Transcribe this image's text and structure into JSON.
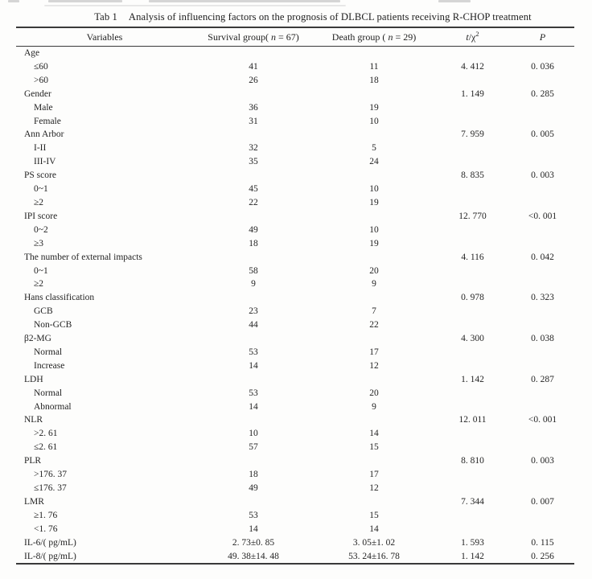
{
  "top_note": "",
  "table": {
    "caption": {
      "tab_label": "Tab 1",
      "text": "Analysis of influencing factors on the prognosis of DLBCL patients receiving R-CHOP treatment"
    },
    "header": {
      "variables": "Variables",
      "survival_pre": "Survival group(",
      "survival_n": "n",
      "survival_post": " = 67)",
      "death_pre": "Death group ( ",
      "death_n": "n",
      "death_post": " = 29)",
      "stat_t": "t",
      "stat_rest": "/χ",
      "stat_sup": "2",
      "p": "P"
    },
    "rows": [
      {
        "label": "Age",
        "indent": 0,
        "survival": "",
        "death": "",
        "stat": "",
        "p": ""
      },
      {
        "label": "≤60",
        "indent": 1,
        "survival": "41",
        "death": "11",
        "stat": "4. 412",
        "p": "0. 036"
      },
      {
        "label": ">60",
        "indent": 1,
        "survival": "26",
        "death": "18",
        "stat": "",
        "p": ""
      },
      {
        "label": "Gender",
        "indent": 0,
        "survival": "",
        "death": "",
        "stat": "1. 149",
        "p": "0. 285"
      },
      {
        "label": "Male",
        "indent": 1,
        "survival": "36",
        "death": "19",
        "stat": "",
        "p": ""
      },
      {
        "label": "Female",
        "indent": 1,
        "survival": "31",
        "death": "10",
        "stat": "",
        "p": ""
      },
      {
        "label": "Ann Arbor",
        "indent": 0,
        "survival": "",
        "death": "",
        "stat": "7. 959",
        "p": "0. 005"
      },
      {
        "label": "I-II",
        "indent": 1,
        "survival": "32",
        "death": "5",
        "stat": "",
        "p": ""
      },
      {
        "label": "III-IV",
        "indent": 1,
        "survival": "35",
        "death": "24",
        "stat": "",
        "p": ""
      },
      {
        "label": "PS score",
        "indent": 0,
        "survival": "",
        "death": "",
        "stat": "8. 835",
        "p": "0. 003"
      },
      {
        "label": "0~1",
        "indent": 1,
        "survival": "45",
        "death": "10",
        "stat": "",
        "p": ""
      },
      {
        "label": "≥2",
        "indent": 1,
        "survival": "22",
        "death": "19",
        "stat": "",
        "p": ""
      },
      {
        "label": "IPI score",
        "indent": 0,
        "survival": "",
        "death": "",
        "stat": "12. 770",
        "p": "<0. 001"
      },
      {
        "label": "0~2",
        "indent": 1,
        "survival": "49",
        "death": "10",
        "stat": "",
        "p": ""
      },
      {
        "label": "≥3",
        "indent": 1,
        "survival": "18",
        "death": "19",
        "stat": "",
        "p": ""
      },
      {
        "label": "The number of external impacts",
        "indent": 0,
        "survival": "",
        "death": "",
        "stat": "4. 116",
        "p": "0. 042"
      },
      {
        "label": "0~1",
        "indent": 1,
        "survival": "58",
        "death": "20",
        "stat": "",
        "p": ""
      },
      {
        "label": "≥2",
        "indent": 1,
        "survival": "9",
        "death": "9",
        "stat": "",
        "p": ""
      },
      {
        "label": "Hans classification",
        "indent": 0,
        "survival": "",
        "death": "",
        "stat": "0. 978",
        "p": "0. 323"
      },
      {
        "label": "GCB",
        "indent": 1,
        "survival": "23",
        "death": "7",
        "stat": "",
        "p": ""
      },
      {
        "label": "Non-GCB",
        "indent": 1,
        "survival": "44",
        "death": "22",
        "stat": "",
        "p": ""
      },
      {
        "label": "β2-MG",
        "indent": 0,
        "survival": "",
        "death": "",
        "stat": "4. 300",
        "p": "0. 038"
      },
      {
        "label": "Normal",
        "indent": 1,
        "survival": "53",
        "death": "17",
        "stat": "",
        "p": ""
      },
      {
        "label": "Increase",
        "indent": 1,
        "survival": "14",
        "death": "12",
        "stat": "",
        "p": ""
      },
      {
        "label": "LDH",
        "indent": 0,
        "survival": "",
        "death": "",
        "stat": "1. 142",
        "p": "0. 287"
      },
      {
        "label": "Normal",
        "indent": 1,
        "survival": "53",
        "death": "20",
        "stat": "",
        "p": ""
      },
      {
        "label": "Abnormal",
        "indent": 1,
        "survival": "14",
        "death": "9",
        "stat": "",
        "p": ""
      },
      {
        "label": "NLR",
        "indent": 0,
        "survival": "",
        "death": "",
        "stat": "12. 011",
        "p": "<0. 001"
      },
      {
        "label": ">2. 61",
        "indent": 1,
        "survival": "10",
        "death": "14",
        "stat": "",
        "p": ""
      },
      {
        "label": "≤2. 61",
        "indent": 1,
        "survival": "57",
        "death": "15",
        "stat": "",
        "p": ""
      },
      {
        "label": "PLR",
        "indent": 0,
        "survival": "",
        "death": "",
        "stat": "8. 810",
        "p": "0. 003"
      },
      {
        "label": ">176. 37",
        "indent": 1,
        "survival": "18",
        "death": "17",
        "stat": "",
        "p": ""
      },
      {
        "label": "≤176. 37",
        "indent": 1,
        "survival": "49",
        "death": "12",
        "stat": "",
        "p": ""
      },
      {
        "label": "LMR",
        "indent": 0,
        "survival": "",
        "death": "",
        "stat": "7. 344",
        "p": "0. 007"
      },
      {
        "label": "≥1. 76",
        "indent": 1,
        "survival": "53",
        "death": "15",
        "stat": "",
        "p": ""
      },
      {
        "label": "<1. 76",
        "indent": 1,
        "survival": "14",
        "death": "14",
        "stat": "",
        "p": ""
      },
      {
        "label": "IL-6/( pg/mL)",
        "indent": 0,
        "survival": "2. 73±0. 85",
        "death": "3. 05±1. 02",
        "stat": "1. 593",
        "p": "0. 115"
      },
      {
        "label": "IL-8/( pg/mL)",
        "indent": 0,
        "survival": "49. 38±14. 48",
        "death": "53. 24±16. 78",
        "stat": "1. 142",
        "p": "0. 256"
      }
    ]
  }
}
